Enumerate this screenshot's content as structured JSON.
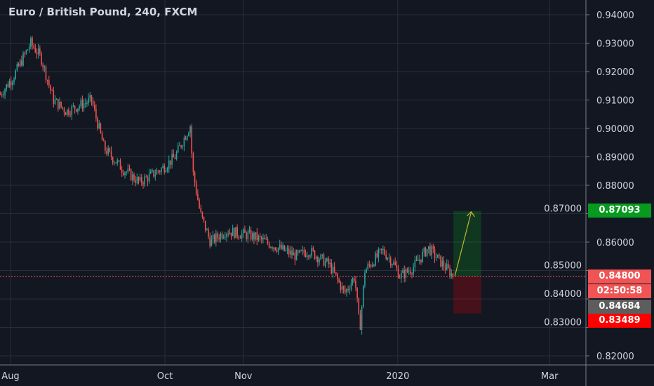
{
  "header": {
    "title": "Euro / British Pound, 240, FXCM"
  },
  "colors": {
    "bg": "#131722",
    "grid": "#2a2e39",
    "up": "#26a69a",
    "down": "#ef5350",
    "target": "#089a1f",
    "stop": "#ff0000",
    "current": "#f05454",
    "gray": "#5d5d5d"
  },
  "price_tags": {
    "target": "0.87093",
    "current": "0.84800",
    "countdown": "02:50:58",
    "gray": "0.84684",
    "stop": "0.83489"
  },
  "chart_data": {
    "type": "candlestick",
    "title": "Euro / British Pound, 240, FXCM",
    "ylim": [
      0.8175,
      0.943
    ],
    "yticks": [
      "0.94000",
      "0.93000",
      "0.92000",
      "0.91000",
      "0.90000",
      "0.89000",
      "0.88000",
      "0.87000",
      "0.86000",
      "0.85000",
      "0.84000",
      "0.83000",
      "0.82000"
    ],
    "xticks": [
      {
        "label": "Aug",
        "day": 0
      },
      {
        "label": "Oct",
        "day": 61
      },
      {
        "label": "Nov",
        "day": 92
      },
      {
        "label": "2020",
        "day": 153
      },
      {
        "label": "Mar",
        "day": 213
      }
    ],
    "xlim_days": [
      -4,
      225
    ],
    "price_path_days": [
      [
        -4,
        0.912
      ],
      [
        1,
        0.918
      ],
      [
        8,
        0.93
      ],
      [
        12,
        0.925
      ],
      [
        17,
        0.91
      ],
      [
        22,
        0.906
      ],
      [
        32,
        0.91
      ],
      [
        37,
        0.893
      ],
      [
        44,
        0.886
      ],
      [
        51,
        0.881
      ],
      [
        60,
        0.886
      ],
      [
        65,
        0.89
      ],
      [
        71,
        0.901
      ],
      [
        72,
        0.885
      ],
      [
        75,
        0.87
      ],
      [
        79,
        0.86
      ],
      [
        85,
        0.864
      ],
      [
        96,
        0.862
      ],
      [
        101,
        0.86
      ],
      [
        113,
        0.855
      ],
      [
        118,
        0.857
      ],
      [
        126,
        0.852
      ],
      [
        132,
        0.842
      ],
      [
        136,
        0.848
      ],
      [
        138,
        0.829
      ],
      [
        140,
        0.85
      ],
      [
        147,
        0.857
      ],
      [
        151,
        0.853
      ],
      [
        154,
        0.848
      ],
      [
        159,
        0.851
      ],
      [
        165,
        0.858
      ],
      [
        171,
        0.852
      ],
      [
        175,
        0.848
      ]
    ],
    "position": {
      "entry": 0.848,
      "target": 0.87093,
      "stop": 0.83489,
      "start_day": 175,
      "end_day": 186
    }
  }
}
